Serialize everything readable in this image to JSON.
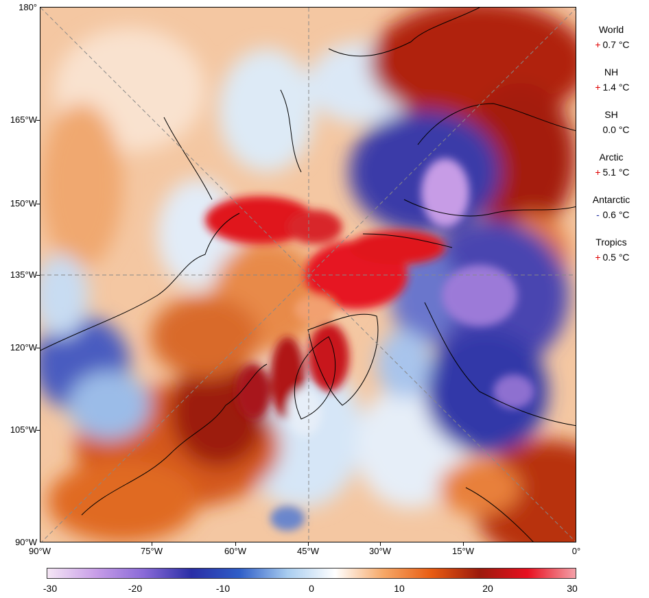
{
  "map": {
    "y_axis_labels": [
      "180°",
      "165°W",
      "150°W",
      "135°W",
      "120°W",
      "105°W",
      "90°W"
    ],
    "x_axis_labels": [
      "90°W",
      "75°W",
      "60°W",
      "45°W",
      "30°W",
      "15°W",
      "0°"
    ],
    "color_scale": {
      "ticks": [
        "-30",
        "-20",
        "-10",
        "0",
        "10",
        "20",
        "30"
      ],
      "colors": [
        "#f5e6f5",
        "#c89ee8",
        "#8a6ad8",
        "#2a2ea6",
        "#2f5ec8",
        "#a9cdf0",
        "#ffffff",
        "#f6a868",
        "#e85c12",
        "#9c1a0c",
        "#e81020",
        "#f4a0a8"
      ]
    }
  },
  "legend": {
    "items": [
      {
        "label": "World",
        "sign": "+",
        "value": "0.7 °C"
      },
      {
        "label": "NH",
        "sign": "+",
        "value": "1.4 °C"
      },
      {
        "label": "SH",
        "sign": "",
        "value": "0.0 °C"
      },
      {
        "label": "Arctic",
        "sign": "+",
        "value": "5.1 °C"
      },
      {
        "label": "Antarctic",
        "sign": "-",
        "value": "0.6 °C"
      },
      {
        "label": "Tropics",
        "sign": "+",
        "value": "0.5 °C"
      }
    ]
  }
}
